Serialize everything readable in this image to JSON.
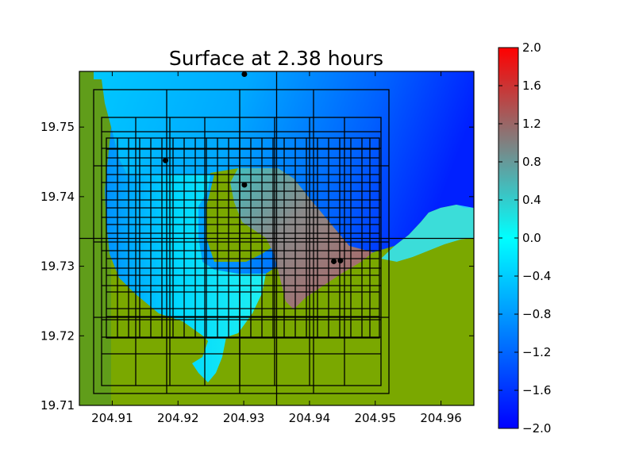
{
  "chart_data": {
    "type": "heatmap",
    "title": "Surface at 2.38 hours",
    "xlabel": "",
    "ylabel": "",
    "xlim": [
      204.905,
      204.965
    ],
    "ylim": [
      19.71,
      19.758
    ],
    "x_ticks": [
      204.91,
      204.92,
      204.93,
      204.94,
      204.95,
      204.96
    ],
    "x_tick_labels": [
      "204.91",
      "204.92",
      "204.93",
      "204.94",
      "204.95",
      "204.96"
    ],
    "y_ticks": [
      19.71,
      19.72,
      19.73,
      19.74,
      19.75
    ],
    "y_tick_labels": [
      "19.71",
      "19.72",
      "19.73",
      "19.74",
      "19.75"
    ],
    "colorbar": {
      "range": [
        -2.0,
        2.0
      ],
      "ticks": [
        2.0,
        1.6,
        1.2,
        0.8,
        0.4,
        0.0,
        -0.4,
        -0.8,
        -1.2,
        -1.6,
        -2.0
      ],
      "tick_labels": [
        "2.0",
        "1.6",
        "1.2",
        "0.8",
        "0.4",
        "0.0",
        "−0.4",
        "−0.8",
        "−1.2",
        "−1.6",
        "−2.0"
      ],
      "colors": [
        "#0000ff",
        "#00ffff",
        "#ff0000"
      ]
    },
    "land_color": "#7aa800",
    "gauges": [
      {
        "x": 204.9301,
        "y": 19.7576
      },
      {
        "x": 204.9181,
        "y": 19.7452
      },
      {
        "x": 204.9301,
        "y": 19.7417
      },
      {
        "x": 204.9437,
        "y": 19.7307
      },
      {
        "x": 204.9447,
        "y": 19.7308
      }
    ],
    "grid_lines": {
      "vertical_full": [
        204.935
      ],
      "horizontal_full": [
        19.734
      ]
    }
  }
}
